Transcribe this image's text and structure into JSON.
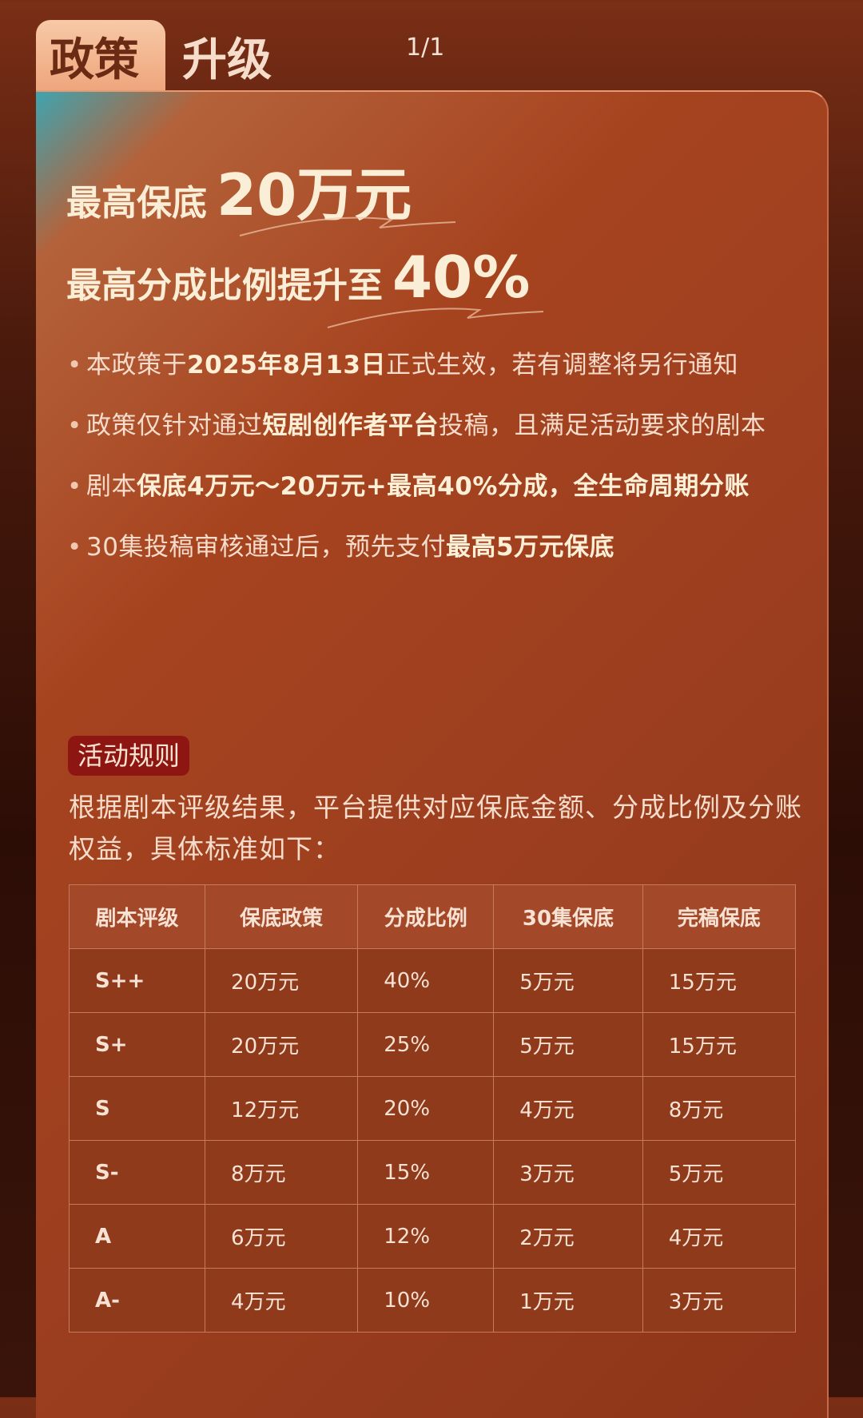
{
  "header": {
    "tab_main": "政策",
    "tab_sub": "升级",
    "pager": "1/1"
  },
  "hero": {
    "line1_prefix": "最高保底",
    "line1_value": "20万元",
    "line2_prefix": "最高分成比例提升至",
    "line2_value": "40%"
  },
  "bullets": [
    {
      "segments": [
        {
          "t": "本政策于",
          "b": false
        },
        {
          "t": "2025年8月13日",
          "b": true
        },
        {
          "t": "正式生效，若有调整将另行通知",
          "b": false
        }
      ]
    },
    {
      "segments": [
        {
          "t": "政策仅针对通过",
          "b": false
        },
        {
          "t": "短剧创作者平台",
          "b": true
        },
        {
          "t": "投稿，且满足活动要求的剧本",
          "b": false
        }
      ]
    },
    {
      "segments": [
        {
          "t": "剧本",
          "b": false
        },
        {
          "t": "保底4万元～20万元+最高40%分成，全生命周期分账",
          "b": true
        }
      ]
    },
    {
      "segments": [
        {
          "t": "30集投稿审核通过后，预先支付",
          "b": false
        },
        {
          "t": "最高5万元保底",
          "b": true
        }
      ]
    }
  ],
  "rules": {
    "badge": "活动规则",
    "description": "根据剧本评级结果，平台提供对应保底金额、分成比例及分账权益，具体标准如下："
  },
  "table": {
    "headers": [
      "剧本评级",
      "保底政策",
      "分成比例",
      "30集保底",
      "完稿保底"
    ],
    "rows": [
      [
        "S++",
        "20万元",
        "40%",
        "5万元",
        "15万元"
      ],
      [
        "S+",
        "20万元",
        "25%",
        "5万元",
        "15万元"
      ],
      [
        "S",
        "12万元",
        "20%",
        "4万元",
        "8万元"
      ],
      [
        "S-",
        "8万元",
        "15%",
        "3万元",
        "5万元"
      ],
      [
        "A",
        "6万元",
        "12%",
        "2万元",
        "4万元"
      ],
      [
        "A-",
        "4万元",
        "10%",
        "1万元",
        "3万元"
      ]
    ]
  }
}
